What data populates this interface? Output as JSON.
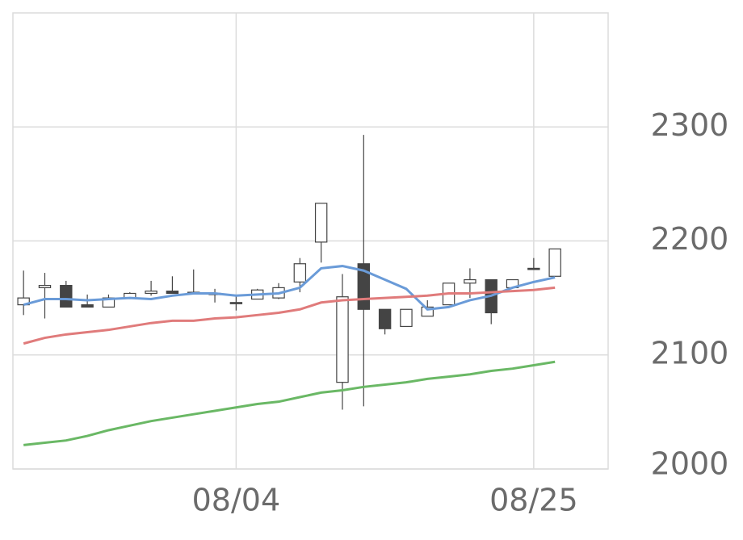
{
  "chart_data": {
    "type": "candlestick",
    "categories": [
      null,
      null,
      null,
      null,
      null,
      null,
      null,
      null,
      null,
      null,
      "08/04",
      null,
      null,
      null,
      null,
      null,
      null,
      null,
      null,
      null,
      null,
      null,
      null,
      null,
      "08/25",
      null
    ],
    "open": [
      2144,
      2159,
      2161,
      2144,
      2142,
      2150,
      2154,
      2156,
      2155,
      2154,
      2146,
      2149,
      2150,
      2164,
      2199,
      2076,
      2180,
      2140,
      2125,
      2134,
      2144,
      2163,
      2166,
      2159,
      2176,
      2169
    ],
    "high": [
      2174,
      2172,
      2165,
      2153,
      2153,
      2155,
      2165,
      2169,
      2175,
      2158,
      2152,
      2158,
      2163,
      2185,
      2233,
      2171,
      2293,
      2140,
      2140,
      2148,
      2163,
      2176,
      2166,
      2166,
      2185,
      2193
    ],
    "low": [
      2135,
      2132,
      2142,
      2142,
      2142,
      2149,
      2152,
      2154,
      2154,
      2146,
      2139,
      2149,
      2149,
      2155,
      2181,
      2052,
      2055,
      2118,
      2125,
      2134,
      2144,
      2150,
      2127,
      2159,
      2175,
      2169
    ],
    "close": [
      2150,
      2161,
      2142,
      2142,
      2150,
      2154,
      2156,
      2154,
      2154,
      2153,
      2145,
      2157,
      2159,
      2180,
      2233,
      2151,
      2140,
      2123,
      2140,
      2142,
      2163,
      2166,
      2137,
      2166,
      2175,
      2193
    ],
    "up_color": "#ffffff",
    "down_color": "#444444",
    "candle_stroke": "#444444",
    "lines": [
      {
        "color": "#6a9bd8",
        "values": [
          2144,
          2149,
          2149,
          2148,
          2149,
          2150,
          2149,
          2152,
          2154,
          2154,
          2152,
          2153,
          2154,
          2159,
          2176,
          2178,
          2174,
          2166,
          2158,
          2140,
          2142,
          2148,
          2152,
          2159,
          2164,
          2168
        ]
      },
      {
        "color": "#e07b7b",
        "values": [
          2110,
          2115,
          2118,
          2120,
          2122,
          2125,
          2128,
          2130,
          2130,
          2132,
          2133,
          2135,
          2137,
          2140,
          2146,
          2148,
          2149,
          2150,
          2151,
          2152,
          2154,
          2154,
          2155,
          2156,
          2157,
          2159
        ]
      },
      {
        "color": "#6ab865",
        "values": [
          2021,
          2023,
          2025,
          2029,
          2034,
          2038,
          2042,
          2045,
          2048,
          2051,
          2054,
          2057,
          2059,
          2063,
          2067,
          2069,
          2072,
          2074,
          2076,
          2079,
          2081,
          2083,
          2086,
          2088,
          2091,
          2094
        ]
      }
    ],
    "ylim": [
      2000,
      2400
    ],
    "yticks": [
      2000,
      2100,
      2200,
      2300
    ],
    "grid": true
  }
}
